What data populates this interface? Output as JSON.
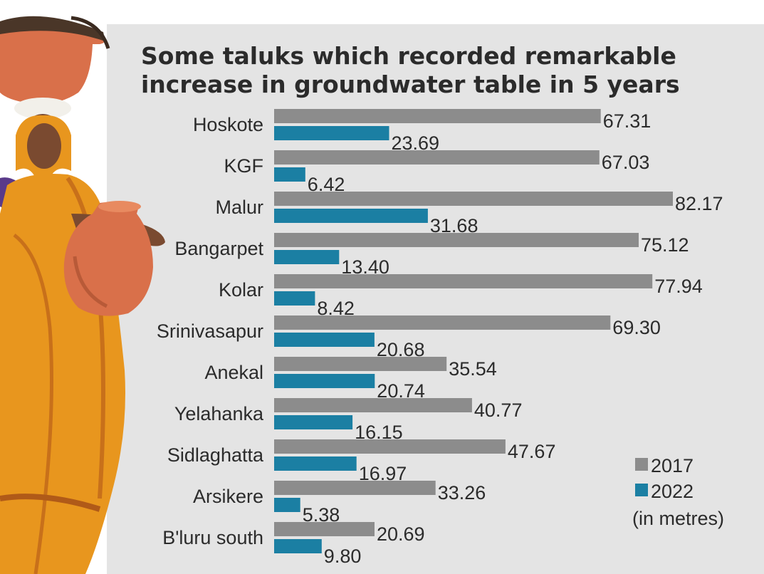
{
  "chart_data": {
    "type": "bar",
    "orientation": "horizontal",
    "title_lines": [
      "Some taluks which recorded remarkable",
      "increase in groundwater table in 5 years"
    ],
    "unit_note": "(in metres)",
    "categories": [
      "Hoskote",
      "KGF",
      "Malur",
      "Bangarpet",
      "Kolar",
      "Srinivasapur",
      "Anekal",
      "Yelahanka",
      "Sidlaghatta",
      "Arsikere",
      "B'luru south"
    ],
    "series": [
      {
        "name": "2017",
        "color": "#8c8c8c",
        "values": [
          67.31,
          67.03,
          82.17,
          75.12,
          77.94,
          69.3,
          35.54,
          40.77,
          47.67,
          33.26,
          20.69
        ],
        "labels": [
          "67.31",
          "67.03",
          "82.17",
          "75.12",
          "77.94",
          "69.30",
          "35.54",
          "40.77",
          "47.67",
          "33.26",
          "20.69"
        ]
      },
      {
        "name": "2022",
        "color": "#1b7fa3",
        "values": [
          23.69,
          6.42,
          31.68,
          13.4,
          8.42,
          20.68,
          20.74,
          16.15,
          16.97,
          5.38,
          9.8
        ],
        "labels": [
          "23.69",
          "6.42",
          "31.68",
          "13.40",
          "8.42",
          "20.68",
          "20.74",
          "16.15",
          "16.97",
          "5.38",
          "9.80"
        ]
      }
    ],
    "legend": "bottom-right",
    "grid": false
  },
  "illustration": {
    "subject": "woman-carrying-water-pots",
    "colors": {
      "saree": "#e8961e",
      "pot": "#d9704a",
      "skin": "#7a4a30",
      "blouse": "#5a3a8a"
    }
  }
}
